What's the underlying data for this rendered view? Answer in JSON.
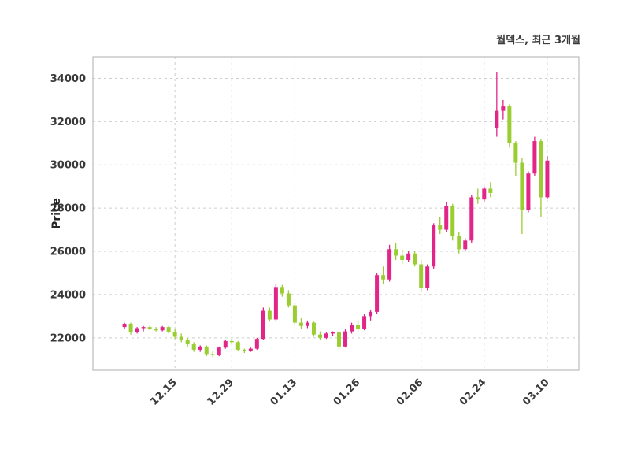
{
  "title": "월덱스, 최근 3개월",
  "ylabel": "Price",
  "colors": {
    "up": "#e22688",
    "down": "#9acd32",
    "grid": "#cccccc",
    "spine": "#bcbcbc",
    "text": "#3a3a3a",
    "background": "#ffffff"
  },
  "chart_data": {
    "type": "candlestick",
    "title": "월덱스, 최근 3개월",
    "ylabel": "Price",
    "xlabel": "",
    "grid": "dashed",
    "legend": "none",
    "ylim": [
      20500,
      35000
    ],
    "y_ticks": [
      22000,
      24000,
      26000,
      28000,
      30000,
      32000,
      34000
    ],
    "x_ticks": [
      {
        "index": 8,
        "label": "12.15"
      },
      {
        "index": 17,
        "label": "12.29"
      },
      {
        "index": 27,
        "label": "01.13"
      },
      {
        "index": 37,
        "label": "01.26"
      },
      {
        "index": 47,
        "label": "02.06"
      },
      {
        "index": 57,
        "label": "02.24"
      },
      {
        "index": 67,
        "label": "03.10"
      }
    ],
    "candle_format": [
      "open",
      "high",
      "low",
      "close"
    ],
    "up_color_meaning": "close >= open (pink)",
    "down_color_meaning": "close < open (green)",
    "candles": [
      [
        22500,
        22700,
        22400,
        22650
      ],
      [
        22650,
        22700,
        22150,
        22250
      ],
      [
        22250,
        22500,
        22200,
        22450
      ],
      [
        22450,
        22550,
        22300,
        22500
      ],
      [
        22500,
        22550,
        22350,
        22400
      ],
      [
        22400,
        22500,
        22300,
        22350
      ],
      [
        22350,
        22550,
        22300,
        22500
      ],
      [
        22500,
        22550,
        22200,
        22250
      ],
      [
        22250,
        22400,
        21950,
        22050
      ],
      [
        22050,
        22200,
        21800,
        21900
      ],
      [
        21900,
        22000,
        21600,
        21700
      ],
      [
        21700,
        21800,
        21350,
        21450
      ],
      [
        21450,
        21650,
        21350,
        21600
      ],
      [
        21600,
        21650,
        21150,
        21250
      ],
      [
        21250,
        21400,
        21100,
        21200
      ],
      [
        21200,
        21600,
        21150,
        21550
      ],
      [
        21550,
        21900,
        21500,
        21850
      ],
      [
        21850,
        21950,
        21700,
        21800
      ],
      [
        21800,
        21850,
        21400,
        21450
      ],
      [
        21450,
        21500,
        21300,
        21400
      ],
      [
        21400,
        21550,
        21350,
        21500
      ],
      [
        21500,
        22000,
        21450,
        21950
      ],
      [
        21950,
        23400,
        21900,
        23250
      ],
      [
        23250,
        23400,
        22750,
        22850
      ],
      [
        22850,
        24500,
        22800,
        24350
      ],
      [
        24350,
        24450,
        23900,
        24050
      ],
      [
        24050,
        24200,
        23400,
        23500
      ],
      [
        23500,
        23600,
        22600,
        22700
      ],
      [
        22700,
        22900,
        22400,
        22550
      ],
      [
        22550,
        22800,
        22450,
        22700
      ],
      [
        22700,
        22750,
        22050,
        22150
      ],
      [
        22150,
        22300,
        21900,
        22000
      ],
      [
        22000,
        22250,
        21950,
        22200
      ],
      [
        22200,
        22300,
        22100,
        22250
      ],
      [
        22250,
        22300,
        21450,
        21600
      ],
      [
        21600,
        22400,
        21550,
        22300
      ],
      [
        22300,
        22700,
        22200,
        22600
      ],
      [
        22600,
        22800,
        22300,
        22400
      ],
      [
        22400,
        23100,
        22350,
        23000
      ],
      [
        23000,
        23300,
        22800,
        23200
      ],
      [
        23200,
        25000,
        23100,
        24900
      ],
      [
        24900,
        25300,
        24500,
        24700
      ],
      [
        24700,
        26300,
        24600,
        26100
      ],
      [
        26100,
        26400,
        25600,
        25800
      ],
      [
        25800,
        26100,
        25400,
        25600
      ],
      [
        25600,
        26000,
        25500,
        25900
      ],
      [
        25900,
        26000,
        25300,
        25400
      ],
      [
        25400,
        25600,
        24100,
        24300
      ],
      [
        24300,
        25400,
        24200,
        25300
      ],
      [
        25300,
        27300,
        25200,
        27200
      ],
      [
        27200,
        27600,
        26800,
        27000
      ],
      [
        27000,
        28300,
        26900,
        28100
      ],
      [
        28100,
        28200,
        26500,
        26700
      ],
      [
        26700,
        26900,
        25900,
        26100
      ],
      [
        26100,
        26600,
        26000,
        26500
      ],
      [
        26500,
        28600,
        26400,
        28500
      ],
      [
        28500,
        28900,
        28200,
        28400
      ],
      [
        28400,
        29000,
        28300,
        28900
      ],
      [
        28900,
        29200,
        28500,
        28700
      ],
      [
        31700,
        34300,
        31300,
        32500
      ],
      [
        32500,
        33000,
        32100,
        32700
      ],
      [
        32700,
        32800,
        30800,
        31000
      ],
      [
        31000,
        31100,
        29500,
        30100
      ],
      [
        30100,
        30300,
        26800,
        27900
      ],
      [
        27900,
        29700,
        27800,
        29600
      ],
      [
        29600,
        31300,
        29500,
        31100
      ],
      [
        31100,
        31200,
        27600,
        28500
      ],
      [
        28500,
        30400,
        28400,
        30200
      ]
    ]
  }
}
